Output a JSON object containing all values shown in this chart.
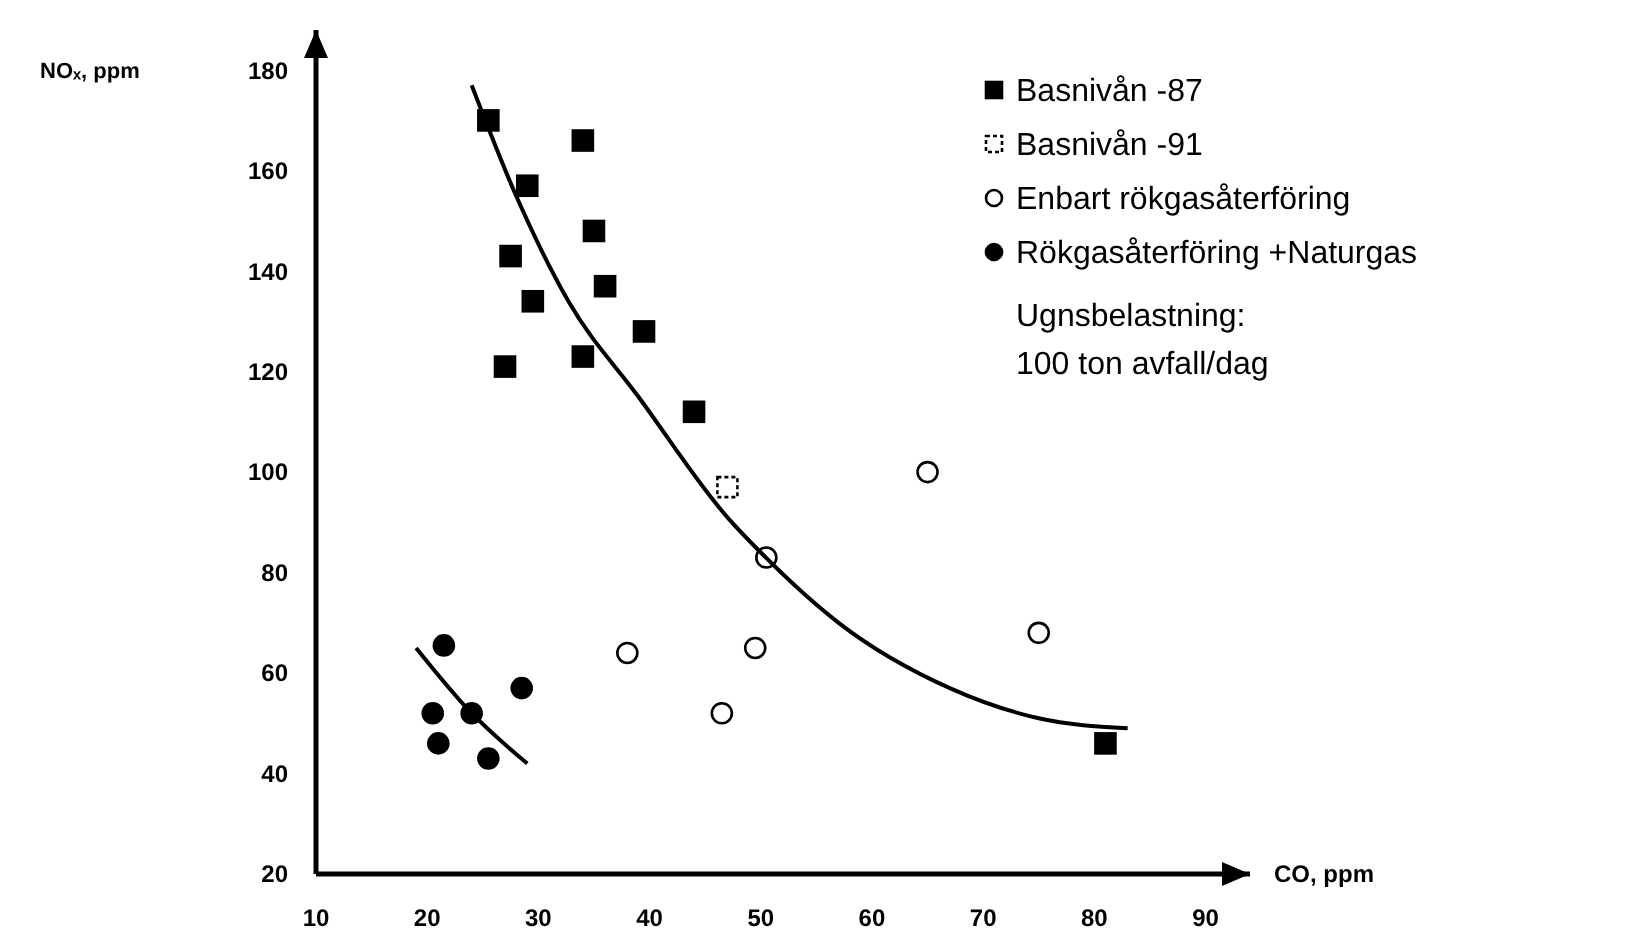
{
  "chart_data": {
    "type": "scatter",
    "xlabel": "CO, ppm",
    "ylabel": "NOₓ, ppm",
    "xlim": [
      10,
      94
    ],
    "ylim": [
      20,
      188
    ],
    "xticks": [
      10,
      20,
      30,
      40,
      50,
      60,
      70,
      80,
      90
    ],
    "yticks": [
      20,
      40,
      60,
      80,
      100,
      120,
      140,
      160,
      180
    ],
    "legend": "top right",
    "annotations": [
      "Ugnsbelastning:\n100 ton avfall/dag"
    ],
    "series": [
      {
        "name": "Basnivån -87",
        "color": "#000000",
        "marker": "square",
        "x": [
          25.5,
          34,
          29,
          27.5,
          35,
          29.5,
          36,
          27,
          34,
          39.5,
          44,
          81
        ],
        "values": [
          170,
          166,
          157,
          143,
          148,
          134,
          137,
          121,
          123,
          128,
          112,
          46
        ]
      },
      {
        "name": "Basnivån -91",
        "color": "#000000",
        "marker": "square",
        "line_style": "dashed",
        "x": [
          47
        ],
        "values": [
          97
        ]
      },
      {
        "name": "Enbart rökgasåterföring",
        "color": "#000000",
        "marker": "circle",
        "line_style": "solid",
        "x": [
          50.5,
          38,
          49.5,
          46.5,
          65,
          75
        ],
        "values": [
          83,
          64,
          65,
          52,
          100,
          68
        ]
      },
      {
        "name": "Rökgasåterföring +Naturgas",
        "color": "#000000",
        "marker": "circle",
        "x": [
          21.5,
          20.5,
          24,
          21,
          25.5,
          28.5
        ],
        "values": [
          65.5,
          52,
          52,
          46,
          43,
          57
        ]
      },
      {
        "type": "line",
        "color": "#000000",
        "x": [
          24,
          28,
          32.7,
          39,
          47,
          50,
          57,
          67,
          75,
          83
        ],
        "values": [
          177,
          155,
          134,
          115,
          91,
          84,
          70,
          57,
          51,
          49
        ]
      },
      {
        "type": "line",
        "color": "#000000",
        "x": [
          19,
          24,
          29
        ],
        "values": [
          65,
          52,
          42
        ]
      }
    ]
  }
}
